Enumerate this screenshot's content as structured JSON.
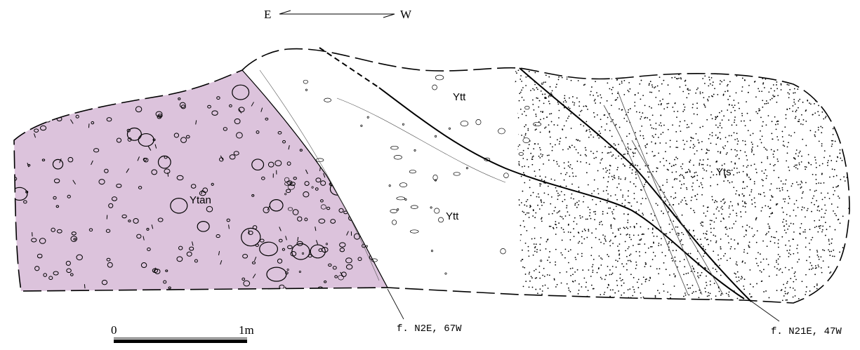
{
  "orientation": {
    "left": "E",
    "right": "W"
  },
  "units": [
    {
      "label": "Ytan"
    },
    {
      "label": "Ytt"
    },
    {
      "label": "Ytt"
    },
    {
      "label": "Yts"
    }
  ],
  "faults": [
    {
      "label": "f. N2E, 67W"
    },
    {
      "label": "f. N21E, 47W"
    }
  ],
  "scale_bar": {
    "start": "0",
    "end": "1m"
  }
}
